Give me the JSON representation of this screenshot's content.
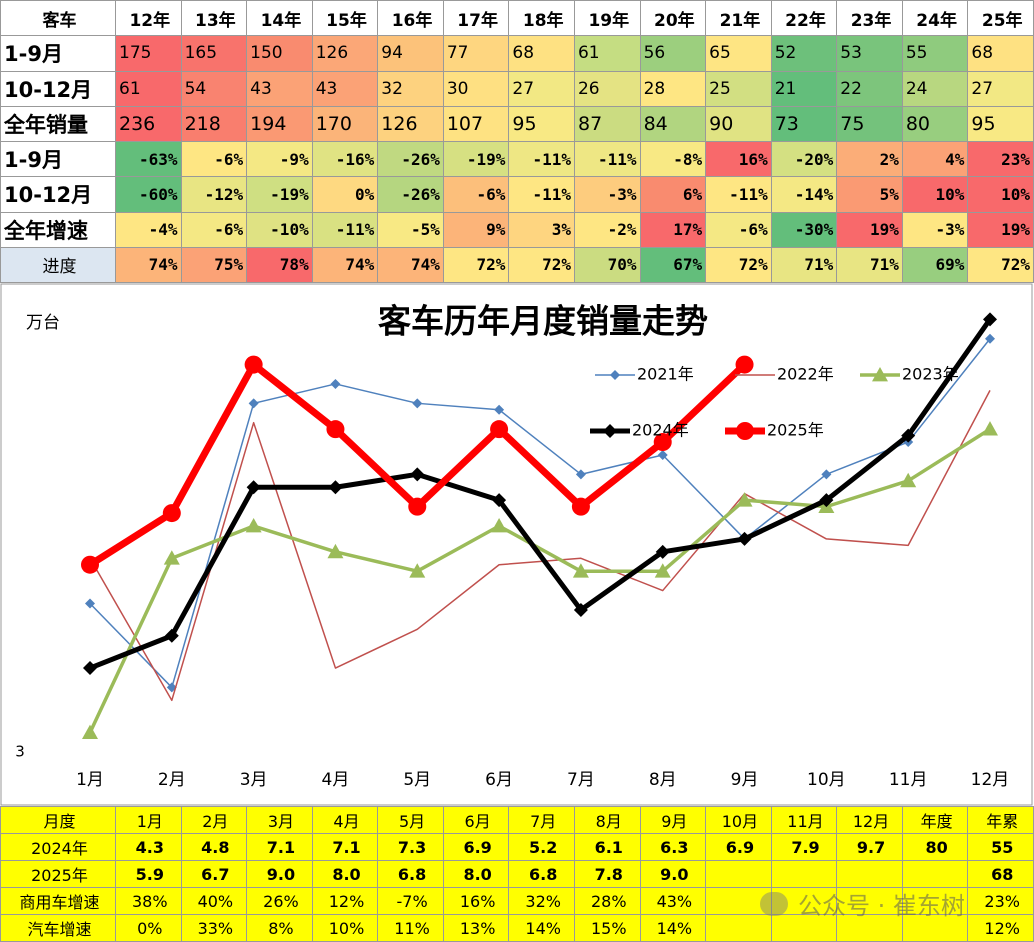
{
  "top_table": {
    "header": [
      "客车",
      "12年",
      "13年",
      "14年",
      "15年",
      "16年",
      "17年",
      "18年",
      "19年",
      "20年",
      "21年",
      "22年",
      "23年",
      "24年",
      "25年"
    ],
    "rows": [
      {
        "label": "1-9月",
        "cells": [
          "175",
          "165",
          "150",
          "126",
          "94",
          "77",
          "68",
          "61",
          "56",
          "65",
          "52",
          "53",
          "55",
          "68"
        ],
        "colors": [
          "#f8696b",
          "#f8736c",
          "#f98b6f",
          "#fba777",
          "#fcc27a",
          "#fed680",
          "#fee182",
          "#c5dd82",
          "#9ccf7e",
          "#fee583",
          "#6dc07b",
          "#79c47c",
          "#8fcb7e",
          "#fee182"
        ]
      },
      {
        "label": "10-12月",
        "cells": [
          "61",
          "54",
          "43",
          "43",
          "32",
          "30",
          "27",
          "26",
          "28",
          "25",
          "21",
          "22",
          "24",
          "27"
        ],
        "colors": [
          "#f8696b",
          "#f98370",
          "#fba276",
          "#fba276",
          "#fdd27f",
          "#fee082",
          "#f2e884",
          "#e4e383",
          "#fee683",
          "#d2df82",
          "#63be7b",
          "#7dc57c",
          "#b8d780",
          "#f2e884"
        ]
      },
      {
        "label": "全年销量",
        "cells": [
          "236",
          "218",
          "194",
          "170",
          "126",
          "107",
          "95",
          "87",
          "84",
          "90",
          "73",
          "75",
          "80",
          "95"
        ],
        "colors": [
          "#f8696b",
          "#f97e6e",
          "#fa9973",
          "#fbb479",
          "#fdd27f",
          "#fee282",
          "#f8e984",
          "#cbdc81",
          "#b1d580",
          "#e0e383",
          "#63be7b",
          "#74c27c",
          "#98ce7f",
          "#f8e984"
        ]
      },
      {
        "label": "1-9月",
        "cells": [
          "-63%",
          "-6%",
          "-9%",
          "-16%",
          "-26%",
          "-19%",
          "-11%",
          "-11%",
          "-8%",
          "16%",
          "-20%",
          "2%",
          "4%",
          "23%"
        ],
        "colors": [
          "#63be7b",
          "#fee683",
          "#f4e884",
          "#e0e383",
          "#c0d981",
          "#d6e082",
          "#eee784",
          "#eee784",
          "#f8e984",
          "#f8696b",
          "#d4e082",
          "#fbad78",
          "#fba276",
          "#f8696b"
        ]
      },
      {
        "label": "10-12月",
        "cells": [
          "-60%",
          "-12%",
          "-19%",
          "0%",
          "-26%",
          "-6%",
          "-11%",
          "-3%",
          "6%",
          "-11%",
          "-14%",
          "5%",
          "10%",
          "10%"
        ],
        "colors": [
          "#63be7b",
          "#e8e583",
          "#cfdf82",
          "#fed981",
          "#b5d680",
          "#fcbf7b",
          "#fee683",
          "#fdcc7e",
          "#f98b6f",
          "#fee683",
          "#f4e884",
          "#fa9a73",
          "#f8696b",
          "#f8696b"
        ]
      },
      {
        "label": "全年增速",
        "cells": [
          "-4%",
          "-6%",
          "-10%",
          "-11%",
          "-5%",
          "9%",
          "3%",
          "-2%",
          "17%",
          "-6%",
          "-30%",
          "19%",
          "-3%",
          "19%"
        ],
        "colors": [
          "#fee683",
          "#f4e884",
          "#dfe283",
          "#d9e182",
          "#f8e984",
          "#fcb479",
          "#fed580",
          "#fee683",
          "#f8696b",
          "#f4e884",
          "#63be7b",
          "#f8696b",
          "#fee683",
          "#f8696b"
        ]
      },
      {
        "label": "进度",
        "cells": [
          "74%",
          "75%",
          "78%",
          "74%",
          "74%",
          "72%",
          "72%",
          "70%",
          "67%",
          "72%",
          "71%",
          "71%",
          "69%",
          "72%"
        ],
        "colors": [
          "#fcb479",
          "#fba276",
          "#f8696b",
          "#fcb479",
          "#fcb479",
          "#fee683",
          "#fee683",
          "#cbdc81",
          "#63be7b",
          "#fee683",
          "#e8e583",
          "#e8e583",
          "#98ce7f",
          "#fee683"
        ]
      }
    ]
  },
  "chart_data": {
    "type": "line",
    "title": "客车历年月度销量走势",
    "y_label": "万台",
    "categories": [
      "1月",
      "2月",
      "3月",
      "4月",
      "5月",
      "6月",
      "7月",
      "8月",
      "9月",
      "10月",
      "11月",
      "12月"
    ],
    "ylim": [
      3,
      10
    ],
    "yticks": [
      3
    ],
    "legend": "upper right",
    "series": [
      {
        "name": "2021年",
        "color": "#4f81bd",
        "values": [
          5.3,
          4.0,
          8.4,
          8.7,
          8.4,
          8.3,
          7.3,
          7.6,
          6.3,
          7.3,
          7.8,
          9.4
        ]
      },
      {
        "name": "2022年",
        "color": "#c0504d",
        "values": [
          6.0,
          3.8,
          8.1,
          4.3,
          4.9,
          5.9,
          6.0,
          5.5,
          7.0,
          6.3,
          6.2,
          8.6
        ]
      },
      {
        "name": "2023年",
        "color": "#9bbb59",
        "values": [
          3.3,
          6.0,
          6.5,
          6.1,
          5.8,
          6.5,
          5.8,
          5.8,
          6.9,
          6.8,
          7.2,
          8.0
        ]
      },
      {
        "name": "2024年",
        "color": "#000000",
        "values": [
          4.3,
          4.8,
          7.1,
          7.1,
          7.3,
          6.9,
          5.2,
          6.1,
          6.3,
          6.9,
          7.9,
          9.7
        ]
      },
      {
        "name": "2025年",
        "color": "#ff0000",
        "values": [
          5.9,
          6.7,
          9.0,
          8.0,
          6.8,
          8.0,
          6.8,
          7.8,
          9.0,
          null,
          null,
          null
        ]
      }
    ]
  },
  "bottom_table": {
    "header": [
      "月度",
      "1月",
      "2月",
      "3月",
      "4月",
      "5月",
      "6月",
      "7月",
      "8月",
      "9月",
      "10月",
      "11月",
      "12月",
      "年度",
      "年累"
    ],
    "rows": [
      {
        "label": "2024年",
        "cells": [
          "4.3",
          "4.8",
          "7.1",
          "7.1",
          "7.3",
          "6.9",
          "5.2",
          "6.1",
          "6.3",
          "6.9",
          "7.9",
          "9.7",
          "80",
          "55"
        ]
      },
      {
        "label": "2025年",
        "cells": [
          "5.9",
          "6.7",
          "9.0",
          "8.0",
          "6.8",
          "8.0",
          "6.8",
          "7.8",
          "9.0",
          null,
          null,
          null,
          null,
          "68"
        ]
      },
      {
        "label": "商用车增速",
        "cells": [
          "38%",
          "40%",
          "26%",
          "12%",
          "-7%",
          "16%",
          "32%",
          "28%",
          "43%",
          null,
          null,
          null,
          null,
          "23%"
        ]
      },
      {
        "label": "汽车增速",
        "cells": [
          "0%",
          "33%",
          "8%",
          "10%",
          "11%",
          "13%",
          "14%",
          "15%",
          "14%",
          null,
          null,
          null,
          null,
          "12%"
        ]
      }
    ]
  },
  "watermark": "公众号 · 崔东树"
}
